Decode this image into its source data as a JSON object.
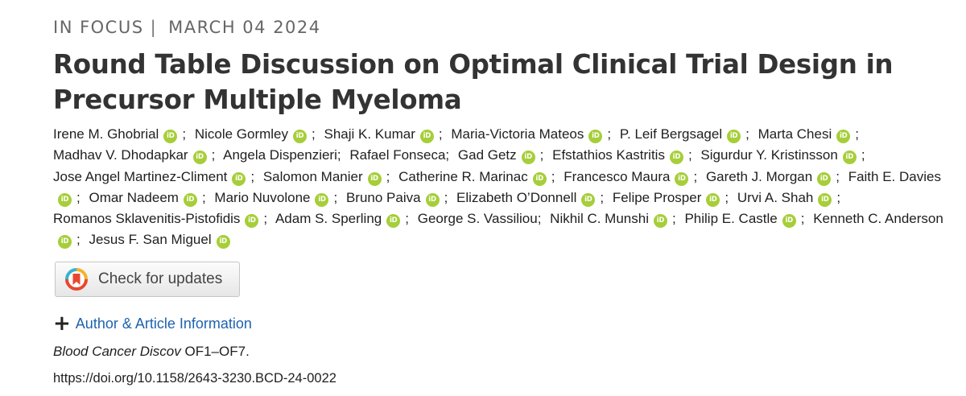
{
  "header": {
    "category": "IN FOCUS",
    "separator": "|",
    "date": "MARCH 04 2024"
  },
  "article": {
    "title": "Round Table Discussion on Optimal Clinical Trial Design in Precursor Multiple Myeloma"
  },
  "authors": [
    {
      "name": "Irene M. Ghobrial",
      "orcid": true
    },
    {
      "name": "Nicole Gormley",
      "orcid": true
    },
    {
      "name": "Shaji K. Kumar",
      "orcid": true
    },
    {
      "name": "Maria-Victoria Mateos",
      "orcid": true
    },
    {
      "name": "P. Leif Bergsagel",
      "orcid": true
    },
    {
      "name": "Marta Chesi",
      "orcid": true
    },
    {
      "name": "Madhav V. Dhodapkar",
      "orcid": true
    },
    {
      "name": "Angela Dispenzieri",
      "orcid": false
    },
    {
      "name": "Rafael Fonseca",
      "orcid": false
    },
    {
      "name": "Gad Getz",
      "orcid": true
    },
    {
      "name": "Efstathios Kastritis",
      "orcid": true
    },
    {
      "name": "Sigurdur Y. Kristinsson",
      "orcid": true
    },
    {
      "name": "Jose Angel Martinez-Climent",
      "orcid": true
    },
    {
      "name": "Salomon Manier",
      "orcid": true
    },
    {
      "name": "Catherine R. Marinac",
      "orcid": true
    },
    {
      "name": "Francesco Maura",
      "orcid": true
    },
    {
      "name": "Gareth J. Morgan",
      "orcid": true
    },
    {
      "name": "Faith E. Davies",
      "orcid": true
    },
    {
      "name": "Omar Nadeem",
      "orcid": true
    },
    {
      "name": "Mario Nuvolone",
      "orcid": true
    },
    {
      "name": "Bruno Paiva",
      "orcid": true
    },
    {
      "name": "Elizabeth O’Donnell",
      "orcid": true
    },
    {
      "name": "Felipe Prosper",
      "orcid": true
    },
    {
      "name": "Urvi A. Shah",
      "orcid": true
    },
    {
      "name": "Romanos Sklavenitis-Pistofidis",
      "orcid": true
    },
    {
      "name": "Adam S. Sperling",
      "orcid": true
    },
    {
      "name": "George S. Vassiliou",
      "orcid": false
    },
    {
      "name": "Nikhil C. Munshi",
      "orcid": true
    },
    {
      "name": "Philip E. Castle",
      "orcid": true
    },
    {
      "name": "Kenneth C. Anderson",
      "orcid": true
    },
    {
      "name": "Jesus F. San Miguel",
      "orcid": true
    }
  ],
  "author_separator": ";",
  "orcid_badge_text": "iD",
  "orcid_color": "#a6ce39",
  "link_color": "#1e62b0",
  "check_updates": {
    "label": "Check for updates",
    "icon": "crossmark-icon"
  },
  "author_info": {
    "icon": "plus-icon",
    "toggle_symbol": "+",
    "label": "Author & Article Information"
  },
  "citation": {
    "journal": "Blood Cancer Discov",
    "pages": "OF1–OF7."
  },
  "doi": "https://doi.org/10.1158/2643-3230.BCD-24-0022"
}
